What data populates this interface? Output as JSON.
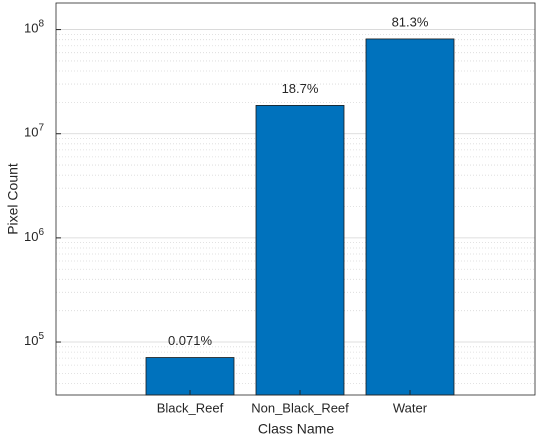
{
  "chart_data": {
    "type": "bar",
    "x_label": "Class Name",
    "y_label": "Pixel Count",
    "categories": [
      "Black_Reef",
      "Non_Black_Reef",
      "Water"
    ],
    "values": [
      71000,
      18700000,
      81300000
    ],
    "annotations": [
      "0.071%",
      "18.7%",
      "81.3%"
    ],
    "color": "#0072bd",
    "log_scale": true,
    "ylim": [
      31000,
      180000000
    ],
    "yticks": [
      {
        "value": 100000,
        "label": "10^5"
      },
      {
        "value": 1000000,
        "label": "10^6"
      },
      {
        "value": 10000000,
        "label": "10^7"
      },
      {
        "value": 100000000,
        "label": "10^8"
      }
    ],
    "grid": true,
    "minor_grid": true
  }
}
